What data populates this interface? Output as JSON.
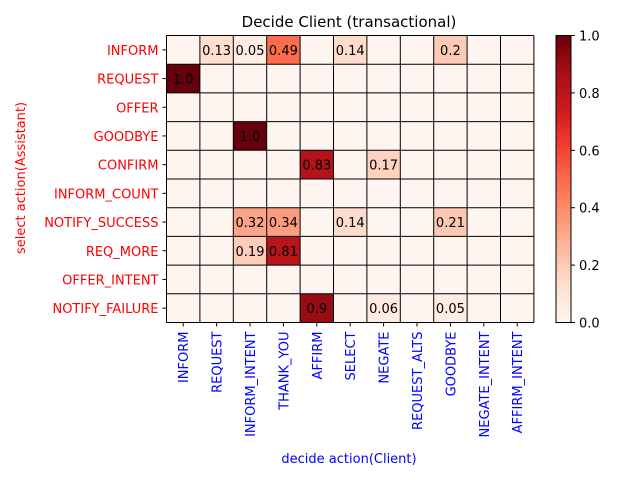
{
  "chart_data": {
    "type": "heatmap",
    "title": "Decide Client (transactional)",
    "xlabel": "decide action(Client)",
    "ylabel": "select action(Assistant)",
    "x_categories": [
      "INFORM",
      "REQUEST",
      "INFORM_INTENT",
      "THANK_YOU",
      "AFFIRM",
      "SELECT",
      "NEGATE",
      "REQUEST_ALTS",
      "GOODBYE",
      "NEGATE_INTENT",
      "AFFIRM_INTENT"
    ],
    "y_categories": [
      "INFORM",
      "REQUEST",
      "OFFER",
      "GOODBYE",
      "CONFIRM",
      "INFORM_COUNT",
      "NOTIFY_SUCCESS",
      "REQ_MORE",
      "OFFER_INTENT",
      "NOTIFY_FAILURE"
    ],
    "values": [
      [
        0,
        0.13,
        0.05,
        0.49,
        0,
        0.14,
        0,
        0,
        0.2,
        0,
        0
      ],
      [
        1.0,
        0,
        0,
        0,
        0,
        0,
        0,
        0,
        0,
        0,
        0
      ],
      [
        0,
        0,
        0,
        0,
        0,
        0,
        0,
        0,
        0,
        0,
        0
      ],
      [
        0,
        0,
        1.0,
        0,
        0,
        0,
        0,
        0,
        0,
        0,
        0
      ],
      [
        0,
        0,
        0,
        0,
        0.83,
        0,
        0.17,
        0,
        0,
        0,
        0
      ],
      [
        0,
        0,
        0,
        0,
        0,
        0,
        0,
        0,
        0,
        0,
        0
      ],
      [
        0,
        0,
        0.32,
        0.34,
        0,
        0.14,
        0,
        0,
        0.21,
        0,
        0
      ],
      [
        0,
        0,
        0.19,
        0.81,
        0,
        0,
        0,
        0,
        0,
        0,
        0
      ],
      [
        0,
        0,
        0,
        0,
        0,
        0,
        0,
        0,
        0,
        0,
        0
      ],
      [
        0,
        0,
        0,
        0,
        0.9,
        0,
        0.06,
        0,
        0.05,
        0,
        0
      ]
    ],
    "cell_labels": [
      [
        "",
        "0.13",
        "0.05",
        "0.49",
        "",
        "0.14",
        "",
        "",
        "0.2",
        "",
        ""
      ],
      [
        "1.0",
        "",
        "",
        "",
        "",
        "",
        "",
        "",
        "",
        "",
        ""
      ],
      [
        "",
        "",
        "",
        "",
        "",
        "",
        "",
        "",
        "",
        "",
        ""
      ],
      [
        "",
        "",
        "1.0",
        "",
        "",
        "",
        "",
        "",
        "",
        "",
        ""
      ],
      [
        "",
        "",
        "",
        "",
        "0.83",
        "",
        "0.17",
        "",
        "",
        "",
        ""
      ],
      [
        "",
        "",
        "",
        "",
        "",
        "",
        "",
        "",
        "",
        "",
        ""
      ],
      [
        "",
        "",
        "0.32",
        "0.34",
        "",
        "0.14",
        "",
        "",
        "0.21",
        "",
        ""
      ],
      [
        "",
        "",
        "0.19",
        "0.81",
        "",
        "",
        "",
        "",
        "",
        "",
        ""
      ],
      [
        "",
        "",
        "",
        "",
        "",
        "",
        "",
        "",
        "",
        "",
        ""
      ],
      [
        "",
        "",
        "",
        "",
        "0.9",
        "",
        "0.06",
        "",
        "0.05",
        "",
        ""
      ]
    ],
    "colormap": "Reds",
    "color_range": [
      0.0,
      1.0
    ],
    "colorbar_ticks": [
      "0.0",
      "0.2",
      "0.4",
      "0.6",
      "0.8",
      "1.0"
    ],
    "grid": true,
    "colors": {
      "y_tick": "#ff0000",
      "x_tick": "#0000ff",
      "grid": "#000000"
    }
  }
}
